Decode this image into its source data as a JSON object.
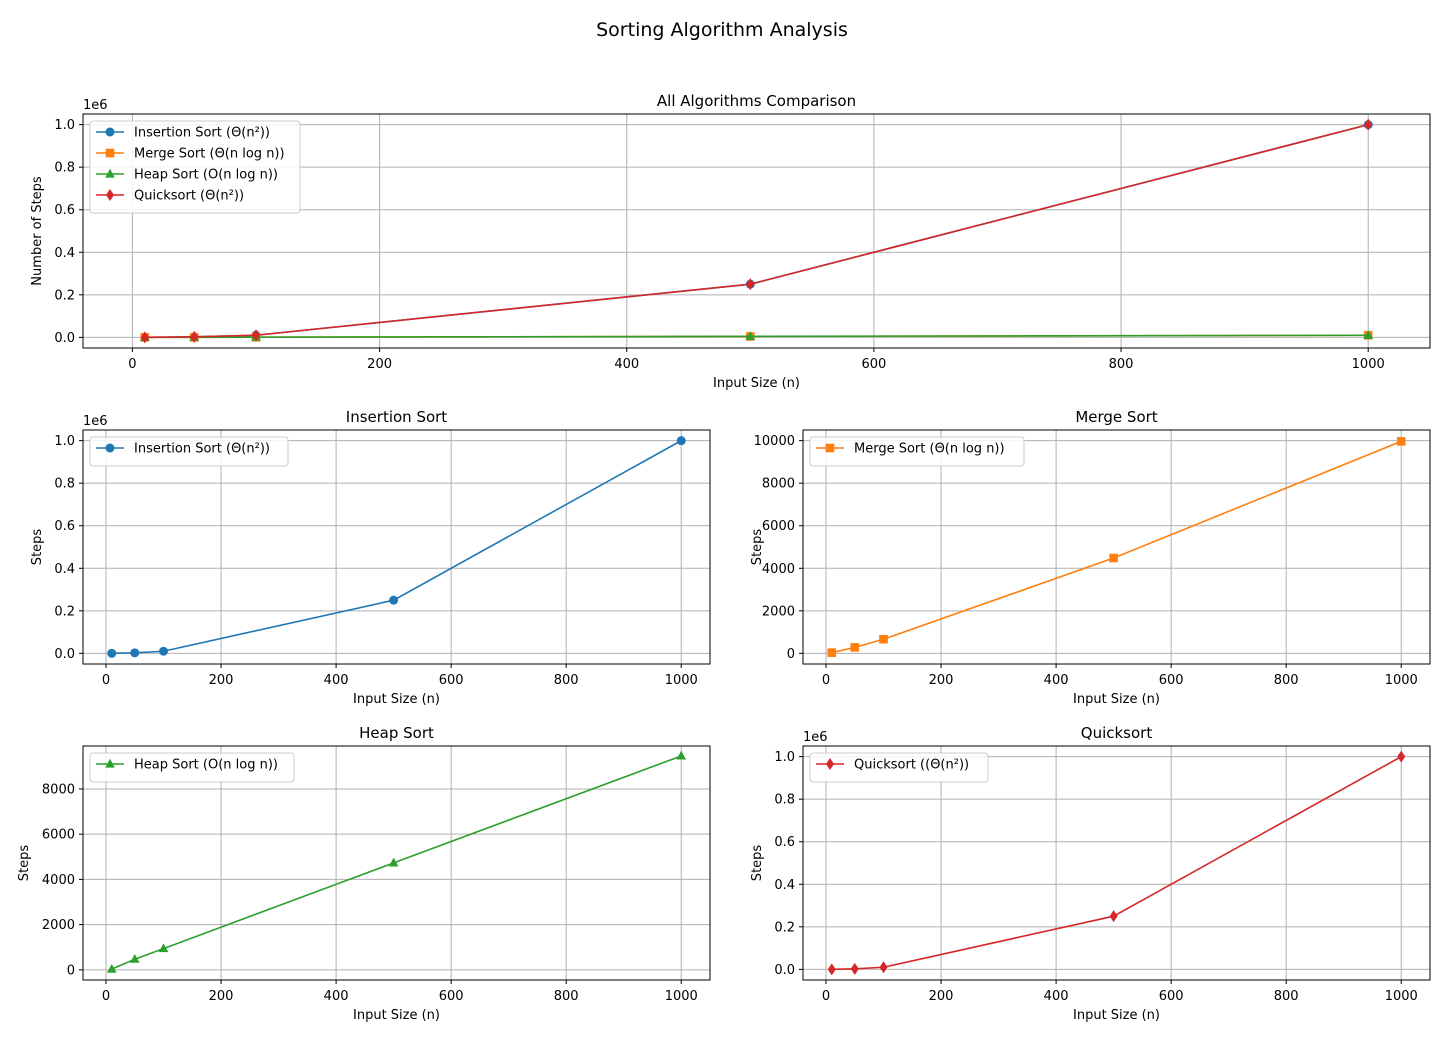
{
  "figure_title": "Sorting Algorithm Analysis",
  "chart_data": [
    {
      "type": "line",
      "title": "All Algorithms Comparison",
      "xlabel": "Input Size (n)",
      "ylabel": "Number of Steps",
      "xlim": [
        -40,
        1050
      ],
      "ylim": [
        -0.05,
        1.05
      ],
      "xticks": [
        0,
        200,
        400,
        600,
        800,
        1000
      ],
      "yticks": [
        0.0,
        0.2,
        0.4,
        0.6,
        0.8,
        1.0
      ],
      "ytick_labels": [
        "0.0",
        "0.2",
        "0.4",
        "0.6",
        "0.8",
        "1.0"
      ],
      "y_multiplier": "1e6",
      "grid": true,
      "legend": "upper-left",
      "x": [
        10,
        50,
        100,
        500,
        1000
      ],
      "series": [
        {
          "name": "Insertion Sort (Θ(n²))",
          "color": "#1f77b4",
          "marker": "circle",
          "values": [
            0.0001,
            0.0025,
            0.01,
            0.25,
            1.0
          ]
        },
        {
          "name": "Merge Sort (Θ(n log n))",
          "color": "#ff7f0e",
          "marker": "square",
          "values": [
            3.3e-05,
            0.00028,
            0.00066,
            0.0045,
            0.00997
          ]
        },
        {
          "name": "Heap Sort (O(n log n))",
          "color": "#2ca02c",
          "marker": "triangle",
          "values": [
            3e-05,
            0.00047,
            0.00094,
            0.00473,
            0.00946
          ]
        },
        {
          "name": "Quicksort (Θ(n²))",
          "color": "#d62728",
          "marker": "diamond",
          "values": [
            0.0001,
            0.0025,
            0.01,
            0.25,
            1.0
          ]
        }
      ]
    },
    {
      "type": "line",
      "title": "Insertion Sort",
      "xlabel": "Input Size (n)",
      "ylabel": "Steps",
      "xlim": [
        -40,
        1050
      ],
      "ylim": [
        -0.05,
        1.05
      ],
      "xticks": [
        0,
        200,
        400,
        600,
        800,
        1000
      ],
      "yticks": [
        0.0,
        0.2,
        0.4,
        0.6,
        0.8,
        1.0
      ],
      "ytick_labels": [
        "0.0",
        "0.2",
        "0.4",
        "0.6",
        "0.8",
        "1.0"
      ],
      "y_multiplier": "1e6",
      "grid": true,
      "legend": "upper-left",
      "x": [
        10,
        50,
        100,
        500,
        1000
      ],
      "series": [
        {
          "name": "Insertion Sort (Θ(n²))",
          "color": "#1f77b4",
          "marker": "circle",
          "values": [
            0.0001,
            0.0025,
            0.01,
            0.25,
            1.0
          ]
        }
      ]
    },
    {
      "type": "line",
      "title": "Merge Sort",
      "xlabel": "Input Size (n)",
      "ylabel": "Steps",
      "xlim": [
        -40,
        1050
      ],
      "ylim": [
        -500,
        10500
      ],
      "xticks": [
        0,
        200,
        400,
        600,
        800,
        1000
      ],
      "yticks": [
        0,
        2000,
        4000,
        6000,
        8000,
        10000
      ],
      "ytick_labels": [
        "0",
        "2000",
        "4000",
        "6000",
        "8000",
        "10000"
      ],
      "y_multiplier": "",
      "grid": true,
      "legend": "upper-left",
      "x": [
        10,
        50,
        100,
        500,
        1000
      ],
      "series": [
        {
          "name": "Merge Sort (Θ(n log n))",
          "color": "#ff7f0e",
          "marker": "square",
          "values": [
            33,
            282,
            664,
            4483,
            9966
          ]
        }
      ]
    },
    {
      "type": "line",
      "title": "Heap Sort",
      "xlabel": "Input Size (n)",
      "ylabel": "Steps",
      "xlim": [
        -40,
        1050
      ],
      "ylim": [
        -450,
        9900
      ],
      "xticks": [
        0,
        200,
        400,
        600,
        800,
        1000
      ],
      "yticks": [
        0,
        2000,
        4000,
        6000,
        8000
      ],
      "ytick_labels": [
        "0",
        "2000",
        "4000",
        "6000",
        "8000"
      ],
      "y_multiplier": "",
      "grid": true,
      "legend": "upper-left",
      "x": [
        10,
        50,
        100,
        500,
        1000
      ],
      "series": [
        {
          "name": "Heap Sort (O(n log n))",
          "color": "#2ca02c",
          "marker": "triangle",
          "values": [
            30,
            470,
            940,
            4730,
            9460
          ]
        }
      ]
    },
    {
      "type": "line",
      "title": "Quicksort",
      "xlabel": "Input Size (n)",
      "ylabel": "Steps",
      "xlim": [
        -40,
        1050
      ],
      "ylim": [
        -0.05,
        1.05
      ],
      "xticks": [
        0,
        200,
        400,
        600,
        800,
        1000
      ],
      "yticks": [
        0.0,
        0.2,
        0.4,
        0.6,
        0.8,
        1.0
      ],
      "ytick_labels": [
        "0.0",
        "0.2",
        "0.4",
        "0.6",
        "0.8",
        "1.0"
      ],
      "y_multiplier": "1e6",
      "grid": true,
      "legend": "upper-left",
      "x": [
        10,
        50,
        100,
        500,
        1000
      ],
      "series": [
        {
          "name": "Quicksort ((Θ(n²))",
          "color": "#d62728",
          "marker": "diamond",
          "values": [
            0.0001,
            0.0025,
            0.01,
            0.25,
            1.0
          ]
        }
      ]
    }
  ]
}
